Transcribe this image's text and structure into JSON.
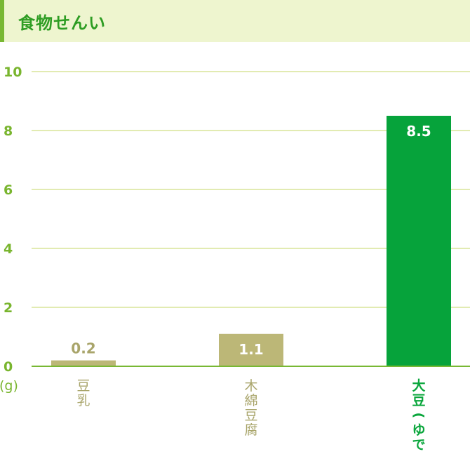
{
  "header": {
    "title": "食物せんい"
  },
  "chart_data": {
    "type": "bar",
    "title": "食物せんい",
    "unit": "(g)",
    "ylim": [
      0,
      10
    ],
    "yticks": [
      "0",
      "2",
      "4",
      "6",
      "8",
      "10"
    ],
    "categories": [
      "豆乳",
      "木綿豆腐",
      "大豆(ゆで)"
    ],
    "values": [
      0.2,
      1.1,
      8.5
    ],
    "value_labels": [
      "0.2",
      "1.1",
      "8.5"
    ],
    "bar_colors": [
      "#bcb777",
      "#bcb777",
      "#06a33b"
    ],
    "label_colors": [
      "#a9a56b",
      "#a9a56b",
      "#0aa63c"
    ],
    "category_columns": [
      [
        "豆",
        "乳"
      ],
      [
        "木",
        "綿",
        "豆",
        "腐"
      ],
      [
        "大",
        "豆",
        "(",
        "ゆ",
        "で",
        ")"
      ]
    ],
    "grid": true,
    "colors": {
      "axis_text": "#79b52e",
      "grid": "#e2ebb2",
      "baseline": "#78b833"
    }
  }
}
